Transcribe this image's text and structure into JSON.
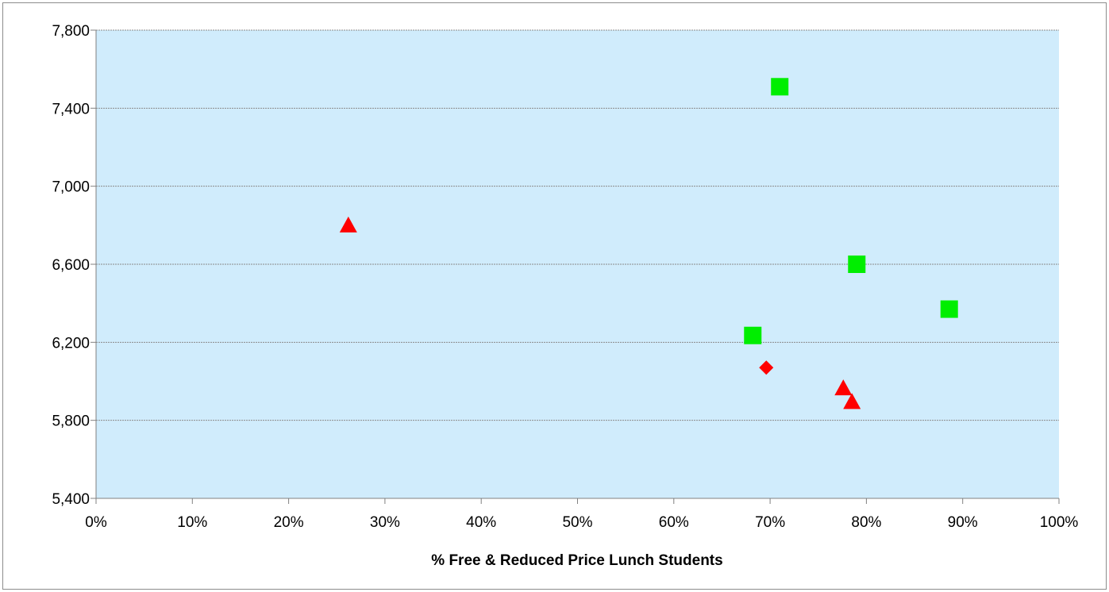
{
  "chart_data": {
    "type": "scatter",
    "title": "",
    "xlabel": "% Free & Reduced Price Lunch Students",
    "ylabel": "",
    "xlim": [
      0,
      1
    ],
    "ylim": [
      5400,
      7800
    ],
    "x_ticks": [
      "0%",
      "10%",
      "20%",
      "30%",
      "40%",
      "50%",
      "60%",
      "70%",
      "80%",
      "90%",
      "100%"
    ],
    "y_ticks": [
      "5,400",
      "5,800",
      "6,200",
      "6,600",
      "7,000",
      "7,400",
      "7,800"
    ],
    "grid": "horizontal",
    "legend": "none",
    "series": [
      {
        "marker": "square",
        "color": "#00ee00",
        "points": [
          {
            "x": 0.71,
            "y": 7510
          },
          {
            "x": 0.79,
            "y": 6600
          },
          {
            "x": 0.886,
            "y": 6370
          },
          {
            "x": 0.682,
            "y": 6235
          }
        ]
      },
      {
        "marker": "triangle",
        "color": "#ff0000",
        "points": [
          {
            "x": 0.262,
            "y": 6800
          },
          {
            "x": 0.776,
            "y": 5965
          },
          {
            "x": 0.785,
            "y": 5895
          }
        ]
      },
      {
        "marker": "diamond",
        "color": "#ff0000",
        "points": [
          {
            "x": 0.696,
            "y": 6070
          }
        ]
      }
    ],
    "plot_background": "#d0ecfc",
    "grid_color": "#8a8a8a"
  }
}
